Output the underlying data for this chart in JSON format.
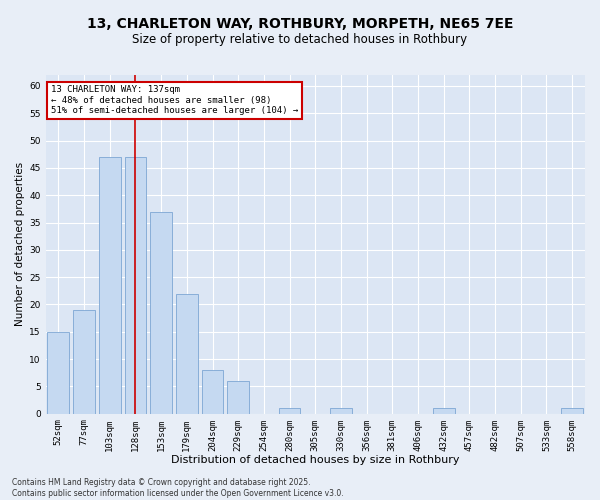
{
  "title": "13, CHARLETON WAY, ROTHBURY, MORPETH, NE65 7EE",
  "subtitle": "Size of property relative to detached houses in Rothbury",
  "xlabel": "Distribution of detached houses by size in Rothbury",
  "ylabel": "Number of detached properties",
  "categories": [
    "52sqm",
    "77sqm",
    "103sqm",
    "128sqm",
    "153sqm",
    "179sqm",
    "204sqm",
    "229sqm",
    "254sqm",
    "280sqm",
    "305sqm",
    "330sqm",
    "356sqm",
    "381sqm",
    "406sqm",
    "432sqm",
    "457sqm",
    "482sqm",
    "507sqm",
    "533sqm",
    "558sqm"
  ],
  "values": [
    15,
    19,
    47,
    47,
    37,
    22,
    8,
    6,
    0,
    1,
    0,
    1,
    0,
    0,
    0,
    1,
    0,
    0,
    0,
    0,
    1
  ],
  "bar_color": "#c5d9f1",
  "bar_edge_color": "#7da6d4",
  "highlight_line_index": 3,
  "ylim": [
    0,
    62
  ],
  "yticks": [
    0,
    5,
    10,
    15,
    20,
    25,
    30,
    35,
    40,
    45,
    50,
    55,
    60
  ],
  "annotation_text": "13 CHARLETON WAY: 137sqm\n← 48% of detached houses are smaller (98)\n51% of semi-detached houses are larger (104) →",
  "annotation_box_color": "#ffffff",
  "annotation_box_edge": "#cc0000",
  "footnote": "Contains HM Land Registry data © Crown copyright and database right 2025.\nContains public sector information licensed under the Open Government Licence v3.0.",
  "bg_color": "#e8eef7",
  "plot_bg_color": "#dce6f4",
  "grid_color": "#ffffff",
  "title_fontsize": 10,
  "subtitle_fontsize": 8.5,
  "tick_fontsize": 6.5,
  "xlabel_fontsize": 8,
  "ylabel_fontsize": 7.5,
  "footnote_fontsize": 5.5,
  "annot_fontsize": 6.5
}
